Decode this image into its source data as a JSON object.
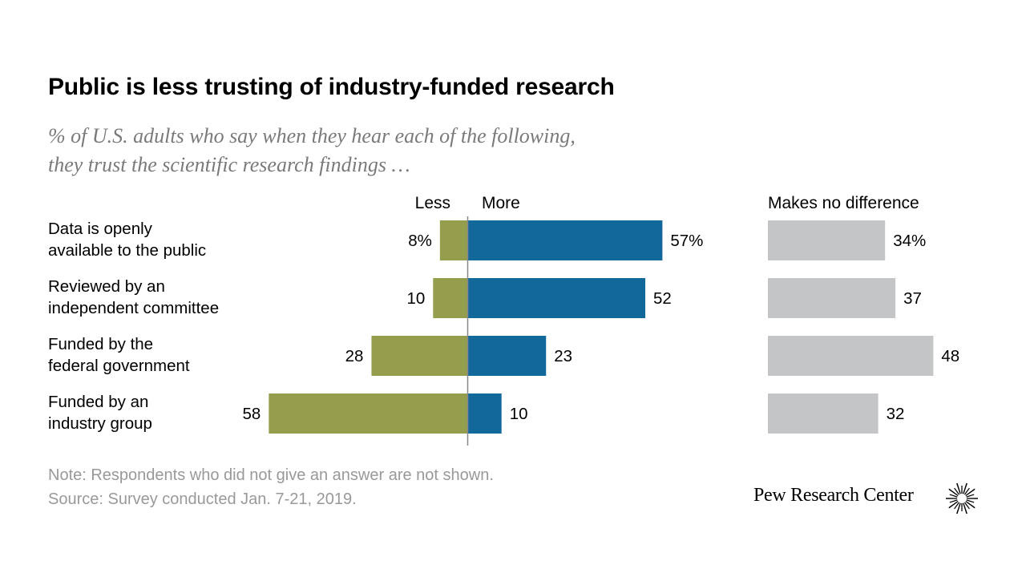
{
  "title": "Public is less trusting of industry-funded research",
  "subtitle_line1": "% of U.S. adults who say when they hear each of the following,",
  "subtitle_line2": "they trust the scientific research findings …",
  "note": "Note: Respondents who did not give an answer are not shown.",
  "source": "Source: Survey conducted Jan. 7-21, 2019.",
  "brand": "Pew Research Center",
  "logo_icon": "pew-sunburst-icon",
  "colors": {
    "less": "#949e4d",
    "more": "#12679b",
    "no_difference": "#c4c5c7",
    "axis": "#888888",
    "text": "#000000",
    "muted": "#7a7a7a"
  },
  "chart_data": {
    "type": "bar",
    "orientation": "horizontal",
    "categories": [
      "Data is openly available to the public",
      "Reviewed by an independent committee",
      "Funded by the federal government",
      "Funded by an industry group"
    ],
    "category_lines": [
      [
        "Data is openly",
        "available to the public"
      ],
      [
        "Reviewed by an",
        "independent committee"
      ],
      [
        "Funded by the",
        "federal government"
      ],
      [
        "Funded by an",
        "industry group"
      ]
    ],
    "series": [
      {
        "name": "Less",
        "values": [
          8,
          10,
          28,
          58
        ],
        "labels": [
          "8%",
          "10",
          "28",
          "58"
        ]
      },
      {
        "name": "More",
        "values": [
          57,
          52,
          23,
          10
        ],
        "labels": [
          "57%",
          "52",
          "23",
          "10"
        ]
      },
      {
        "name": "Makes no difference",
        "values": [
          34,
          37,
          48,
          32
        ],
        "labels": [
          "34%",
          "37",
          "48",
          "32"
        ]
      }
    ]
  }
}
